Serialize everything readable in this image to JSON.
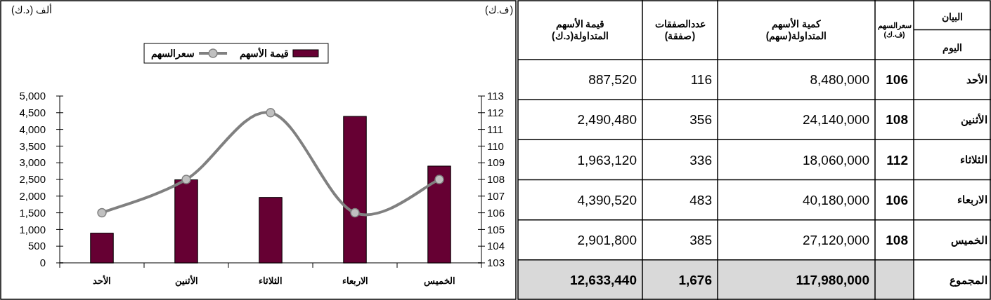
{
  "chart_data": [
    {
      "type": "bar",
      "categories": [
        "الأحد",
        "الأثنين",
        "الثلاثاء",
        "الاربعاء",
        "الخميس"
      ],
      "series": [
        {
          "name": "قيمة الأسهم",
          "type": "bar",
          "color": "#660033",
          "values": [
            890,
            2490,
            1960,
            4390,
            2900
          ]
        },
        {
          "name": "سعرالسهم",
          "type": "line",
          "axis": "y2",
          "color": "#808080",
          "marker": "circle",
          "values": [
            106,
            108,
            112,
            106,
            108
          ]
        }
      ],
      "ylabel": "ألف (د.ك)",
      "y2label": "(ف.ك)",
      "ylim": [
        0,
        5000
      ],
      "yticks": [
        {
          "value": 0,
          "label": "0"
        },
        {
          "value": 500,
          "label": "500"
        },
        {
          "value": 1000,
          "label": "1,000"
        },
        {
          "value": 1500,
          "label": "1,500"
        },
        {
          "value": 2000,
          "label": "2,000"
        },
        {
          "value": 2500,
          "label": "2,500"
        },
        {
          "value": 3000,
          "label": "3,000"
        },
        {
          "value": 3500,
          "label": "3,500"
        },
        {
          "value": 4000,
          "label": "4,000"
        },
        {
          "value": 4500,
          "label": "4,500"
        },
        {
          "value": 5000,
          "label": "5,000"
        }
      ],
      "y2lim": [
        103,
        113
      ],
      "y2ticks": [
        103,
        104,
        105,
        106,
        107,
        108,
        109,
        110,
        111,
        112,
        113
      ],
      "legend": "top",
      "grid": false
    },
    {
      "type": "heatmap",
      "categories": [
        "قيمة الأسهم\nالمتداولة(د.ك)",
        "عددالصفقات\n(صفقة)",
        "كمية الأسهم\nالمتداولة(سهم)",
        "سعرالسهم\n(ف.ك)"
      ],
      "y_categories": [
        "الأحد",
        "الأثنين",
        "الثلاثاء",
        "الاربعاء",
        "الخميس",
        "المجموع"
      ],
      "annotations": [
        "البيان",
        "اليوم"
      ],
      "cells": [
        [
          887520,
          116,
          8480000,
          106
        ],
        [
          2490480,
          356,
          24140000,
          108
        ],
        [
          1963120,
          336,
          18060000,
          112
        ],
        [
          4390520,
          483,
          40180000,
          106
        ],
        [
          2901800,
          385,
          27120000,
          108
        ],
        [
          12633440,
          1676,
          117980000,
          null
        ]
      ],
      "cell_labels": [
        [
          "887,520",
          "116",
          "8,480,000",
          "106"
        ],
        [
          "2,490,480",
          "356",
          "24,140,000",
          "108"
        ],
        [
          "1,963,120",
          "336",
          "18,060,000",
          "112"
        ],
        [
          "4,390,520",
          "483",
          "40,180,000",
          "106"
        ],
        [
          "2,901,800",
          "385",
          "27,120,000",
          "108"
        ],
        [
          "12,633,440",
          "1,676",
          "117,980,000",
          null
        ]
      ]
    }
  ]
}
